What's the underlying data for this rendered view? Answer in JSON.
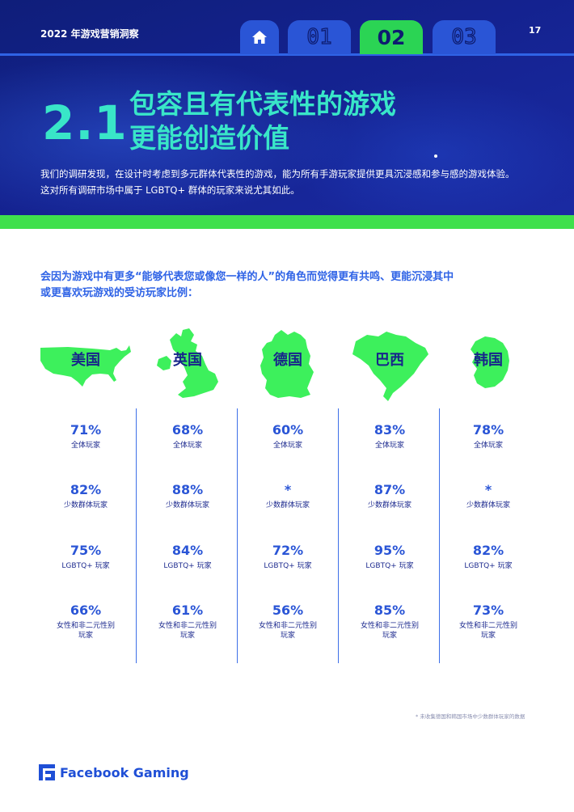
{
  "header": {
    "report_title": "2022 年游戏营销洞察",
    "page_number": "17",
    "tabs": [
      "01",
      "02",
      "03"
    ],
    "active_tab": "02"
  },
  "section": {
    "number": "2.1",
    "title_line1": "包容且有代表性的游戏",
    "title_line2": "更能创造价值",
    "intro_line1": "我们的调研发现，在设计时考虑到多元群体代表性的游戏，能为所有手游玩家提供更具沉浸感和参与感的游戏体验。",
    "intro_line2": "这对所有调研市场中属于 LGBTQ+ 群体的玩家来说尤其如此。"
  },
  "question": {
    "line1": "会因为游戏中有更多“能够代表您或像您一样的人”的角色而觉得更有共鸣、更能沉浸其中",
    "line2": "或更喜欢玩游戏的受访玩家比例："
  },
  "labels": {
    "all": "全体玩家",
    "minority": "少数群体玩家",
    "lgbtq": "LGBTQ+ 玩家",
    "women_line1": "女性和非二元性别",
    "women_line2": "玩家"
  },
  "countries": [
    {
      "name": "美国",
      "icon": "usa-map-icon",
      "all": "71%",
      "minority": "82%",
      "lgbtq": "75%",
      "women": "66%"
    },
    {
      "name": "英国",
      "icon": "uk-map-icon",
      "all": "68%",
      "minority": "88%",
      "lgbtq": "84%",
      "women": "61%"
    },
    {
      "name": "德国",
      "icon": "germany-map-icon",
      "all": "60%",
      "minority": "*",
      "lgbtq": "72%",
      "women": "56%"
    },
    {
      "name": "巴西",
      "icon": "brazil-map-icon",
      "all": "83%",
      "minority": "87%",
      "lgbtq": "95%",
      "women": "85%"
    },
    {
      "name": "韩国",
      "icon": "korea-map-icon",
      "all": "78%",
      "minority": "*",
      "lgbtq": "82%",
      "women": "73%"
    }
  ],
  "footnote": "* 未收集德国和韩国市场中少数群体玩家的数据",
  "brand": {
    "name": "Facebook Gaming",
    "icon": "facebook-gaming-logo-icon"
  },
  "colors": {
    "navy": "#14228f",
    "accent_blue": "#2a55d6",
    "title_teal": "#39e6c8",
    "green": "#3fe04c",
    "map_green": "#3df05c"
  }
}
